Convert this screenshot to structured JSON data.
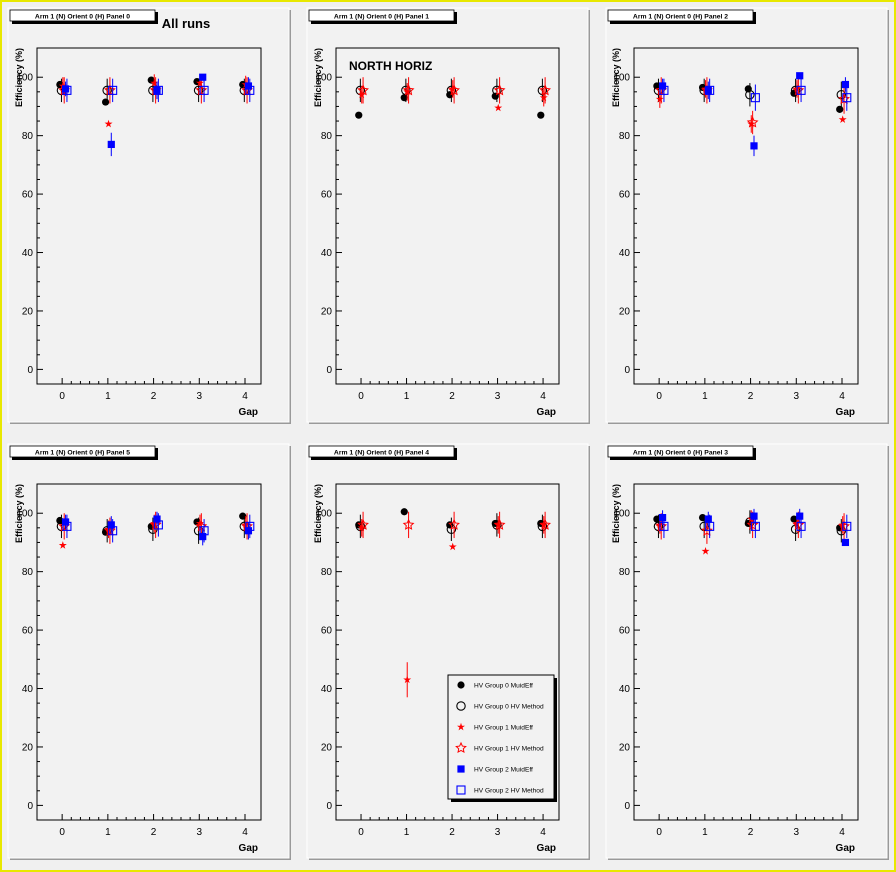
{
  "canvas": {
    "background": "#f0f0f0",
    "frame_color": "#e8e800"
  },
  "colors": {
    "group0": "#000000",
    "group1": "#ff0000",
    "group2": "#0000ff"
  },
  "annotations": {
    "all_runs": "All runs",
    "north_horiz": "NORTH HORIZ"
  },
  "legend": {
    "entries": [
      {
        "label": "HV Group 0 MuidEff",
        "marker": "filled-circle",
        "color": "#000000"
      },
      {
        "label": "HV Group 0 HV Method",
        "marker": "open-circle",
        "color": "#000000"
      },
      {
        "label": "HV Group 1 MuidEff",
        "marker": "filled-star",
        "color": "#ff0000"
      },
      {
        "label": "HV Group 1 HV Method",
        "marker": "open-star",
        "color": "#ff0000"
      },
      {
        "label": "HV Group 2 MuidEff",
        "marker": "filled-square",
        "color": "#0000ff"
      },
      {
        "label": "HV Group 2 HV Method",
        "marker": "open-square",
        "color": "#0000ff"
      }
    ]
  },
  "chart_data": [
    {
      "type": "scatter",
      "title": "Arm 1 (N) Orient 0 (H) Panel 0",
      "xlabel": "Gap",
      "ylabel": "Efficiency (%)",
      "x": [
        0,
        1,
        2,
        3,
        4
      ],
      "xlim": [
        -0.55,
        4.35
      ],
      "ylim": [
        -5,
        110
      ],
      "yticks": [
        0,
        20,
        40,
        60,
        80,
        100
      ],
      "grid": false,
      "series": [
        {
          "name": "HV Group 0 MuidEff",
          "values": [
            97.5,
            91.5,
            99,
            98.5,
            97.5
          ],
          "errors": [
            0,
            0,
            0,
            0,
            0
          ]
        },
        {
          "name": "HV Group 0 HV Method",
          "values": [
            95.5,
            95.5,
            95.5,
            95.5,
            95.5
          ],
          "errors": [
            4,
            4,
            4,
            4,
            4
          ]
        },
        {
          "name": "HV Group 1 MuidEff",
          "values": [
            97,
            84,
            98,
            98,
            97.5
          ],
          "errors": [
            3,
            0,
            3,
            3,
            3
          ]
        },
        {
          "name": "HV Group 1 HV Method",
          "values": [
            95.5,
            95.5,
            95.5,
            95.5,
            95.5
          ],
          "errors": [
            4.5,
            4.5,
            4.5,
            4.5,
            4.5
          ]
        },
        {
          "name": "HV Group 2 MuidEff",
          "values": [
            96,
            77,
            95.5,
            100,
            97
          ],
          "errors": [
            2.5,
            4,
            3,
            0,
            3
          ]
        },
        {
          "name": "HV Group 2 HV Method",
          "values": [
            95.5,
            95.5,
            95.5,
            95.5,
            95.5
          ],
          "errors": [
            4,
            4,
            4,
            4,
            4
          ]
        }
      ]
    },
    {
      "type": "scatter",
      "title": "Arm 1 (N) Orient 0 (H) Panel 1",
      "xlabel": "Gap",
      "ylabel": "Efficiency (%)",
      "x": [
        0,
        1,
        2,
        3,
        4
      ],
      "xlim": [
        -0.55,
        4.35
      ],
      "ylim": [
        -5,
        110
      ],
      "yticks": [
        0,
        20,
        40,
        60,
        80,
        100
      ],
      "grid": false,
      "series": [
        {
          "name": "HV Group 0 MuidEff",
          "values": [
            87,
            93,
            94,
            93.5,
            87
          ],
          "errors": [
            0,
            0,
            0,
            0,
            0
          ]
        },
        {
          "name": "HV Group 0 HV Method",
          "values": [
            95.5,
            95.5,
            95.5,
            95.5,
            95.5
          ],
          "errors": [
            4,
            4,
            4,
            4,
            4
          ]
        },
        {
          "name": "HV Group 1 MuidEff",
          "values": [
            94,
            95,
            96,
            89.5,
            93
          ],
          "errors": [
            3,
            3,
            3,
            0,
            3
          ]
        },
        {
          "name": "HV Group 1 HV Method",
          "values": [
            95.5,
            95.5,
            95.5,
            95.5,
            95.5
          ],
          "errors": [
            4.5,
            4.5,
            4.5,
            4.5,
            4.5
          ]
        },
        {
          "name": "HV Group 2 MuidEff",
          "values": [],
          "errors": []
        },
        {
          "name": "HV Group 2 HV Method",
          "values": [],
          "errors": []
        }
      ]
    },
    {
      "type": "scatter",
      "title": "Arm 1 (N) Orient 0 (H) Panel 2",
      "xlabel": "Gap",
      "ylabel": "Efficiency (%)",
      "x": [
        0,
        1,
        2,
        3,
        4
      ],
      "xlim": [
        -0.55,
        4.35
      ],
      "ylim": [
        -5,
        110
      ],
      "yticks": [
        0,
        20,
        40,
        60,
        80,
        100
      ],
      "grid": false,
      "series": [
        {
          "name": "HV Group 0 MuidEff",
          "values": [
            97,
            96.5,
            96,
            94.5,
            89
          ],
          "errors": [
            0,
            0,
            0,
            0,
            0
          ]
        },
        {
          "name": "HV Group 0 HV Method",
          "values": [
            95.5,
            95.5,
            94,
            95.5,
            94
          ],
          "errors": [
            4,
            4,
            4,
            4,
            4.5
          ]
        },
        {
          "name": "HV Group 1 MuidEff",
          "values": [
            92.5,
            96,
            84,
            96,
            85.5
          ],
          "errors": [
            3,
            3,
            3,
            3,
            0
          ]
        },
        {
          "name": "HV Group 1 HV Method",
          "values": [
            95.5,
            95.5,
            84.5,
            95.5,
            92.5
          ],
          "errors": [
            4.5,
            4.5,
            4,
            4.5,
            5
          ]
        },
        {
          "name": "HV Group 2 MuidEff",
          "values": [
            97,
            95.5,
            76.5,
            100.5,
            97.5
          ],
          "errors": [
            2.5,
            3,
            3.5,
            0,
            2.5
          ]
        },
        {
          "name": "HV Group 2 HV Method",
          "values": [
            95.5,
            95.5,
            93,
            95.5,
            93
          ],
          "errors": [
            4,
            4,
            4.5,
            4,
            4.5
          ]
        }
      ]
    },
    {
      "type": "scatter",
      "title": "Arm 1 (N) Orient 0 (H) Panel 5",
      "xlabel": "Gap",
      "ylabel": "Efficiency (%)",
      "x": [
        0,
        1,
        2,
        3,
        4
      ],
      "xlim": [
        -0.55,
        4.35
      ],
      "ylim": [
        -5,
        110
      ],
      "yticks": [
        0,
        20,
        40,
        60,
        80,
        100
      ],
      "grid": false,
      "series": [
        {
          "name": "HV Group 0 MuidEff",
          "values": [
            97.5,
            93.5,
            95.5,
            97,
            99
          ],
          "errors": [
            0,
            0,
            0,
            0,
            0
          ]
        },
        {
          "name": "HV Group 0 HV Method",
          "values": [
            95.5,
            94,
            94.5,
            94,
            95.5
          ],
          "errors": [
            4,
            4,
            4,
            4.5,
            4
          ]
        },
        {
          "name": "HV Group 1 MuidEff",
          "values": [
            89,
            94.5,
            96.5,
            96.5,
            96
          ],
          "errors": [
            0,
            3,
            3,
            3,
            3
          ]
        },
        {
          "name": "HV Group 1 HV Method",
          "values": [
            95.5,
            94,
            96,
            95.5,
            95.5
          ],
          "errors": [
            4.5,
            4.5,
            4.5,
            4.5,
            4.5
          ]
        },
        {
          "name": "HV Group 2 MuidEff",
          "values": [
            97,
            96,
            98,
            92,
            94
          ],
          "errors": [
            2.5,
            3,
            2.5,
            3,
            3
          ]
        },
        {
          "name": "HV Group 2 HV Method",
          "values": [
            95.5,
            94,
            96,
            94,
            95.5
          ],
          "errors": [
            4,
            4,
            4,
            4,
            4
          ]
        }
      ]
    },
    {
      "type": "scatter",
      "title": "Arm 1 (N) Orient 0 (H) Panel 4",
      "xlabel": "Gap",
      "ylabel": "Efficiency (%)",
      "x": [
        0,
        1,
        2,
        3,
        4
      ],
      "xlim": [
        -0.55,
        4.35
      ],
      "ylim": [
        -5,
        110
      ],
      "yticks": [
        0,
        20,
        40,
        60,
        80,
        100
      ],
      "grid": false,
      "series": [
        {
          "name": "HV Group 0 MuidEff",
          "values": [
            96,
            100.5,
            96,
            96.5,
            96.5
          ],
          "errors": [
            0,
            0,
            0,
            0,
            0
          ]
        },
        {
          "name": "HV Group 0 HV Method",
          "values": [
            95.5,
            null,
            94.5,
            96,
            95.5
          ],
          "errors": [
            4,
            0,
            4,
            4,
            4
          ]
        },
        {
          "name": "HV Group 1 MuidEff",
          "values": [
            95,
            43,
            88.5,
            96,
            96
          ],
          "errors": [
            3,
            6,
            0,
            3,
            3
          ]
        },
        {
          "name": "HV Group 1 HV Method",
          "values": [
            96,
            96,
            96,
            96,
            96
          ],
          "errors": [
            4.5,
            4.5,
            4.5,
            4.5,
            4.5
          ]
        },
        {
          "name": "HV Group 2 MuidEff",
          "values": [],
          "errors": []
        },
        {
          "name": "HV Group 2 HV Method",
          "values": [],
          "errors": []
        }
      ]
    },
    {
      "type": "scatter",
      "title": "Arm 1 (N) Orient 0 (H) Panel 3",
      "xlabel": "Gap",
      "ylabel": "Efficiency (%)",
      "x": [
        0,
        1,
        2,
        3,
        4
      ],
      "xlim": [
        -0.55,
        4.35
      ],
      "ylim": [
        -5,
        110
      ],
      "yticks": [
        0,
        20,
        40,
        60,
        80,
        100
      ],
      "grid": false,
      "series": [
        {
          "name": "HV Group 0 MuidEff",
          "values": [
            98,
            98.5,
            96.5,
            98,
            95
          ],
          "errors": [
            0,
            0,
            0,
            0,
            0
          ]
        },
        {
          "name": "HV Group 0 HV Method",
          "values": [
            95.5,
            95.5,
            97,
            94.5,
            94
          ],
          "errors": [
            4,
            4,
            4,
            4,
            4
          ]
        },
        {
          "name": "HV Group 1 MuidEff",
          "values": [
            96,
            87,
            98,
            96.5,
            96
          ],
          "errors": [
            3,
            0,
            3,
            3,
            3
          ]
        },
        {
          "name": "HV Group 1 HV Method",
          "values": [
            95.5,
            94,
            96,
            96,
            95.5
          ],
          "errors": [
            4.5,
            4.5,
            4.5,
            4.5,
            4.5
          ]
        },
        {
          "name": "HV Group 2 MuidEff",
          "values": [
            98.5,
            98,
            99,
            99,
            90
          ],
          "errors": [
            2.5,
            2.5,
            2.5,
            2.5,
            0
          ]
        },
        {
          "name": "HV Group 2 HV Method",
          "values": [
            95.5,
            95.5,
            95.5,
            95.5,
            95.5
          ],
          "errors": [
            4,
            4,
            4,
            4,
            4
          ]
        }
      ]
    }
  ]
}
